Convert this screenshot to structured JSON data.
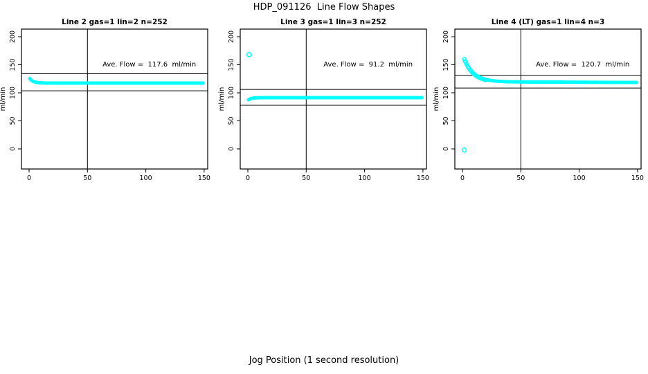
{
  "title": "HDP_091126  Line Flow Shapes",
  "xlabel": "Jog Position (1 second resolution)",
  "colors": {
    "points": "#00FFFF",
    "axis": "#000000",
    "background": "#FFFFFF"
  },
  "chart_data": [
    {
      "type": "scatter",
      "title": "Line 2 gas=1 lin=2 n=252",
      "line": "Line 2",
      "gas": 1,
      "lin": 2,
      "n": 252,
      "ylabel": "ml/min",
      "x_ticks": [
        0,
        50,
        100,
        150
      ],
      "y_ticks": [
        0,
        50,
        100,
        150,
        200
      ],
      "annotation": "Ave. Flow =  117.6  ml/min",
      "ave_flow_ml_min": 117.6,
      "reference_lines_y": [
        134,
        103.5
      ],
      "vertical_line_x": 50,
      "legend": "none",
      "grid": false,
      "series": [
        {
          "kind": "band",
          "x_start": 0.5,
          "x_end": 149,
          "step": 0.5,
          "base": 117.4,
          "amp": 8,
          "tau": 3,
          "drift": 0,
          "r": 2.2,
          "open": false
        }
      ],
      "markers": []
    },
    {
      "type": "scatter",
      "title": "Line 3 gas=1 lin=3 n=252",
      "line": "Line 3",
      "gas": 1,
      "lin": 3,
      "n": 252,
      "ylabel": "ml/min",
      "x_ticks": [
        0,
        50,
        100,
        150
      ],
      "y_ticks": [
        0,
        50,
        100,
        150,
        200
      ],
      "annotation": "Ave. Flow =  91.2  ml/min",
      "ave_flow_ml_min": 91.2,
      "reference_lines_y": [
        106,
        77.8
      ],
      "vertical_line_x": 50,
      "legend": "none",
      "grid": false,
      "series": [
        {
          "kind": "band",
          "x_start": 0.5,
          "x_end": 149,
          "step": 0.5,
          "base": 91.3,
          "amp": -3.8,
          "tau": 2.5,
          "drift": 0,
          "r": 2.2,
          "open": false
        }
      ],
      "markers": [
        {
          "x": 1,
          "y": 168,
          "open": true,
          "r": 3
        }
      ]
    },
    {
      "type": "scatter",
      "title": "Line 4 (LT) gas=1 lin=4 n=3",
      "line": "Line 4 (LT)",
      "gas": 1,
      "lin": 4,
      "n": 3,
      "ylabel": "ml/min",
      "x_ticks": [
        0,
        50,
        100,
        150
      ],
      "y_ticks": [
        0,
        50,
        100,
        150,
        200
      ],
      "annotation": "Ave. Flow =  120.7  ml/min",
      "ave_flow_ml_min": 120.7,
      "reference_lines_y": [
        131,
        108.5
      ],
      "vertical_line_x": 50,
      "legend": "none",
      "grid": false,
      "series": [
        {
          "kind": "band",
          "x_start": 1.5,
          "x_end": 20,
          "step": 0.8,
          "base": 119,
          "amp": 41,
          "tau": 8,
          "drift": 0,
          "r": 2.5,
          "open": true
        },
        {
          "kind": "band",
          "x_start": 20,
          "x_end": 149,
          "step": 0.5,
          "base": 119.5,
          "amp": 4.2,
          "tau": 8,
          "drift": -0.008,
          "r": 2.2,
          "open": false
        }
      ],
      "markers": [
        {
          "x": 1.5,
          "y": -2,
          "open": true,
          "r": 3
        }
      ]
    }
  ]
}
